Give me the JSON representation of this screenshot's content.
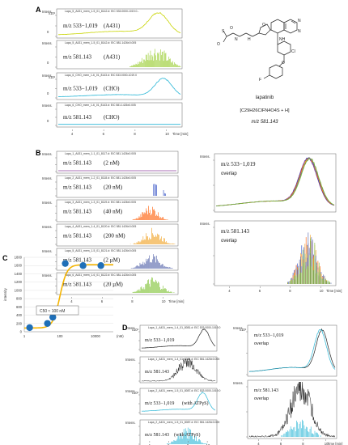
{
  "panel_labels": {
    "a": "A",
    "b": "B",
    "c": "C",
    "d": "D"
  },
  "structure": {
    "name": "lapatinib",
    "formula": "[C29H26ClFN4O4S + H]",
    "mz": "m/z 581.143"
  },
  "panel_a": {
    "rows": [
      {
        "header": "Lapa_5_A431_mem_1-5_01_8142.d: EIC 533.0000-1019.0...",
        "mz": "m/z 533−1,019",
        "sample": "(A431)",
        "sample_color": "#5aa02c",
        "trace": "#c8d400",
        "scale": "x10²"
      },
      {
        "header": "Lapa_5_A431_mem_1-5_01_8142.d: EIC 581.1426±0.005",
        "mz": "m/z 581.143",
        "sample": "(A431)",
        "sample_color": "#5aa02c",
        "trace": "#9acd32",
        "scale": ""
      },
      {
        "header": "Lapa_6_CHO_mem_1-6_01_8143.d: EIC 533.0000-1019.0",
        "mz": "m/z 533−1,019",
        "sample": "(CHO)",
        "sample_color": "#1a8fc8",
        "trace": "#29b6d6",
        "scale": "x10²"
      },
      {
        "header": "Lapa_6_CHO_mem_1-6_01_8143.d: EIC 581.1426±0.005",
        "mz": "m/z 581.143",
        "sample": "(CHO)",
        "sample_color": "#1a8fc8",
        "trace": "#29b6d6",
        "scale": ""
      }
    ],
    "xlabel": "Time [min]"
  },
  "panel_b": {
    "rows": [
      {
        "mz": "m/z 581.143",
        "conc": "(2 nM)",
        "conc_color": "#8b3f9c",
        "trace": "#8b3f9c"
      },
      {
        "mz": "m/z 581.143",
        "conc": "(20 nM)",
        "conc_color": "#1f3fbf",
        "trace": "#1f3fbf"
      },
      {
        "mz": "m/z 581.143",
        "conc": "(40 nM)",
        "conc_color": "#e02010",
        "trace": "#ff5a00"
      },
      {
        "mz": "m/z 581.143",
        "conc": "(200 nM)",
        "conc_color": "#e08a00",
        "trace": "#f0a020"
      },
      {
        "mz": "m/z 581.143",
        "conc": "(2 µM)",
        "conc_color": "#2a4ab0",
        "trace": "#5060a8"
      },
      {
        "mz": "m/z 581.143",
        "conc": "(20 µM)",
        "conc_color": "#4a9a20",
        "trace": "#7cc030"
      }
    ],
    "overlay_top": {
      "mz": "m/z 533−1,019",
      "label": "overlap"
    },
    "overlay_bottom": {
      "mz": "m/z 581.143",
      "label": "overlap"
    },
    "xlabel": "Time [min]"
  },
  "panel_c": {
    "ylabel": "intensity",
    "xlabel": "(nM)",
    "annotation": "C50 ≈ 100 nM",
    "yticks": [
      "0",
      "200",
      "400",
      "600",
      "800",
      "1000",
      "1200",
      "1400",
      "1600",
      "1800"
    ],
    "xticks": [
      "1",
      "100",
      "10000"
    ]
  },
  "panel_d": {
    "rows": [
      {
        "header": "Lapa_1_A431_mem_1-4_01_8081.d: EIC 533.0000-1019.0",
        "mz": "m/z 533−1,019",
        "extra": "",
        "trace": "#222"
      },
      {
        "header": "Lapa_1_A431_mem_1-4_01_8081.d: EIC 581.1426±0.005",
        "mz": "m/z 581.143",
        "extra": "",
        "trace": "#222"
      },
      {
        "header": "Lapa_2_A431_mem_1-5_01_8087.d: EIC 533.0000-1019.0",
        "mz": "m/z 533−1,019",
        "extra": "(with ATPγS)",
        "trace": "#29b6d6"
      },
      {
        "header": "Lapa_2_A431_mem_1-5_01_8087.d: EIC 581.1426±0.005",
        "mz": "m/z 581.143",
        "extra": "(with ATPγS)",
        "trace": "#29b6d6"
      }
    ],
    "overlay_top": {
      "mz": "m/z 533−1,019",
      "label": "overlap"
    },
    "overlay_bottom": {
      "mz": "m/z 581.143",
      "label": "overlap"
    },
    "xlabel": "Time [min]"
  },
  "chart_data": [
    {
      "type": "scatter",
      "title": "",
      "xlabel": "(nM)",
      "ylabel": "intensity",
      "xscale": "log",
      "xlim": [
        1,
        100000
      ],
      "ylim": [
        0,
        1800
      ],
      "x": [
        2,
        20,
        40,
        200,
        2000,
        20000
      ],
      "y": [
        100,
        200,
        350,
        1650,
        1600,
        1600
      ],
      "fit_curve": "sigmoidal",
      "curve_color": "#f5b400",
      "marker_color": "#1f6fb8",
      "grid": true,
      "annotation": "C50 ≈ 100 nM"
    },
    {
      "type": "line",
      "title": "panel A m/z 533-1,019 (A431)",
      "xlabel": "Time [min]",
      "xticks": [
        4,
        6,
        8,
        10
      ],
      "series": [
        {
          "name": "",
          "peak_time": 9.3
        }
      ]
    }
  ]
}
